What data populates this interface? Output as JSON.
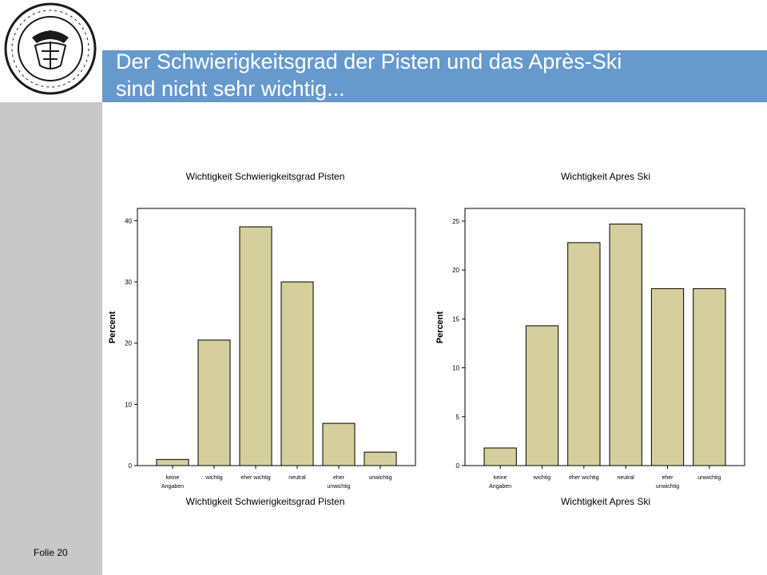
{
  "slide": {
    "title_line1": "Der Schwierigkeitsgrad der Pisten und das Après-Ski",
    "title_line2": "sind nicht sehr wichtig...",
    "footer": "Folie 20"
  },
  "colors": {
    "header_band": "#6699cc",
    "header_dark": "#003366",
    "sidebar": "#c8c8c8",
    "bar_fill": "#d4cf9d"
  },
  "logo": {
    "icon": "university-seal-icon"
  },
  "chart_data": [
    {
      "type": "bar",
      "title": "Wichtigkeit Schwierigkeitsgrad Pisten",
      "xlabel": "Wichtigkeit Schwierigkeitsgrad Pisten",
      "ylabel": "Percent",
      "categories": [
        [
          "keine",
          "Angaben"
        ],
        [
          "wichtig"
        ],
        [
          "eher wichtig"
        ],
        [
          "neutral"
        ],
        [
          "eher",
          "unwichtig"
        ],
        [
          "unwichtig"
        ]
      ],
      "values": [
        1.0,
        20.5,
        39.0,
        30.0,
        6.9,
        2.2
      ],
      "ylim": [
        0,
        42
      ],
      "yticks": [
        0,
        10,
        20,
        30,
        40
      ],
      "grid": false
    },
    {
      "type": "bar",
      "title": "Wichtigkeit Apres Ski",
      "xlabel": "Wichtigkeit Apres Ski",
      "ylabel": "Percent",
      "categories": [
        [
          "keine",
          "Angaben"
        ],
        [
          "wichtig"
        ],
        [
          "eher wichtig"
        ],
        [
          "neutral"
        ],
        [
          "eher",
          "unwichtig"
        ],
        [
          "unwichtig"
        ]
      ],
      "values": [
        1.8,
        14.3,
        22.8,
        24.7,
        18.1,
        18.1
      ],
      "ylim": [
        0,
        26.3
      ],
      "yticks": [
        0,
        5,
        10,
        15,
        20,
        25
      ],
      "grid": false
    }
  ]
}
